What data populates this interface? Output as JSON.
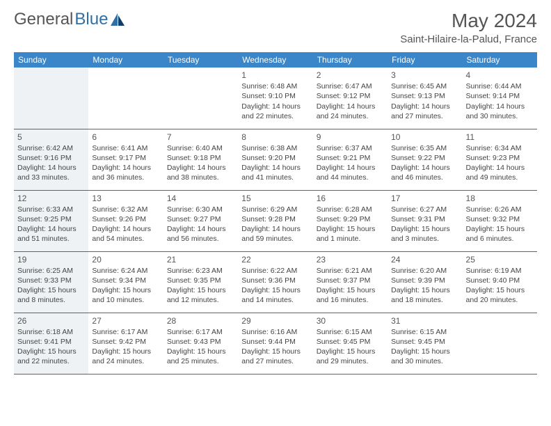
{
  "logo": {
    "part1": "General",
    "part2": "Blue"
  },
  "title": "May 2024",
  "location": "Saint-Hilaire-la-Palud, France",
  "colors": {
    "header_bg": "#3a86c8",
    "header_text": "#ffffff",
    "row_border": "#3a6a9a",
    "weekstart_bg": "#eef2f5",
    "title_color": "#555555",
    "logo_blue": "#2f6fa8"
  },
  "dayNames": [
    "Sunday",
    "Monday",
    "Tuesday",
    "Wednesday",
    "Thursday",
    "Friday",
    "Saturday"
  ],
  "labels": {
    "sunrise": "Sunrise:",
    "sunset": "Sunset:",
    "daylight": "Daylight:"
  },
  "grid": [
    [
      null,
      null,
      null,
      {
        "n": "1",
        "sunrise": "6:48 AM",
        "sunset": "9:10 PM",
        "daylight": "14 hours and 22 minutes."
      },
      {
        "n": "2",
        "sunrise": "6:47 AM",
        "sunset": "9:12 PM",
        "daylight": "14 hours and 24 minutes."
      },
      {
        "n": "3",
        "sunrise": "6:45 AM",
        "sunset": "9:13 PM",
        "daylight": "14 hours and 27 minutes."
      },
      {
        "n": "4",
        "sunrise": "6:44 AM",
        "sunset": "9:14 PM",
        "daylight": "14 hours and 30 minutes."
      }
    ],
    [
      {
        "n": "5",
        "sunrise": "6:42 AM",
        "sunset": "9:16 PM",
        "daylight": "14 hours and 33 minutes."
      },
      {
        "n": "6",
        "sunrise": "6:41 AM",
        "sunset": "9:17 PM",
        "daylight": "14 hours and 36 minutes."
      },
      {
        "n": "7",
        "sunrise": "6:40 AM",
        "sunset": "9:18 PM",
        "daylight": "14 hours and 38 minutes."
      },
      {
        "n": "8",
        "sunrise": "6:38 AM",
        "sunset": "9:20 PM",
        "daylight": "14 hours and 41 minutes."
      },
      {
        "n": "9",
        "sunrise": "6:37 AM",
        "sunset": "9:21 PM",
        "daylight": "14 hours and 44 minutes."
      },
      {
        "n": "10",
        "sunrise": "6:35 AM",
        "sunset": "9:22 PM",
        "daylight": "14 hours and 46 minutes."
      },
      {
        "n": "11",
        "sunrise": "6:34 AM",
        "sunset": "9:23 PM",
        "daylight": "14 hours and 49 minutes."
      }
    ],
    [
      {
        "n": "12",
        "sunrise": "6:33 AM",
        "sunset": "9:25 PM",
        "daylight": "14 hours and 51 minutes."
      },
      {
        "n": "13",
        "sunrise": "6:32 AM",
        "sunset": "9:26 PM",
        "daylight": "14 hours and 54 minutes."
      },
      {
        "n": "14",
        "sunrise": "6:30 AM",
        "sunset": "9:27 PM",
        "daylight": "14 hours and 56 minutes."
      },
      {
        "n": "15",
        "sunrise": "6:29 AM",
        "sunset": "9:28 PM",
        "daylight": "14 hours and 59 minutes."
      },
      {
        "n": "16",
        "sunrise": "6:28 AM",
        "sunset": "9:29 PM",
        "daylight": "15 hours and 1 minute."
      },
      {
        "n": "17",
        "sunrise": "6:27 AM",
        "sunset": "9:31 PM",
        "daylight": "15 hours and 3 minutes."
      },
      {
        "n": "18",
        "sunrise": "6:26 AM",
        "sunset": "9:32 PM",
        "daylight": "15 hours and 6 minutes."
      }
    ],
    [
      {
        "n": "19",
        "sunrise": "6:25 AM",
        "sunset": "9:33 PM",
        "daylight": "15 hours and 8 minutes."
      },
      {
        "n": "20",
        "sunrise": "6:24 AM",
        "sunset": "9:34 PM",
        "daylight": "15 hours and 10 minutes."
      },
      {
        "n": "21",
        "sunrise": "6:23 AM",
        "sunset": "9:35 PM",
        "daylight": "15 hours and 12 minutes."
      },
      {
        "n": "22",
        "sunrise": "6:22 AM",
        "sunset": "9:36 PM",
        "daylight": "15 hours and 14 minutes."
      },
      {
        "n": "23",
        "sunrise": "6:21 AM",
        "sunset": "9:37 PM",
        "daylight": "15 hours and 16 minutes."
      },
      {
        "n": "24",
        "sunrise": "6:20 AM",
        "sunset": "9:39 PM",
        "daylight": "15 hours and 18 minutes."
      },
      {
        "n": "25",
        "sunrise": "6:19 AM",
        "sunset": "9:40 PM",
        "daylight": "15 hours and 20 minutes."
      }
    ],
    [
      {
        "n": "26",
        "sunrise": "6:18 AM",
        "sunset": "9:41 PM",
        "daylight": "15 hours and 22 minutes."
      },
      {
        "n": "27",
        "sunrise": "6:17 AM",
        "sunset": "9:42 PM",
        "daylight": "15 hours and 24 minutes."
      },
      {
        "n": "28",
        "sunrise": "6:17 AM",
        "sunset": "9:43 PM",
        "daylight": "15 hours and 25 minutes."
      },
      {
        "n": "29",
        "sunrise": "6:16 AM",
        "sunset": "9:44 PM",
        "daylight": "15 hours and 27 minutes."
      },
      {
        "n": "30",
        "sunrise": "6:15 AM",
        "sunset": "9:45 PM",
        "daylight": "15 hours and 29 minutes."
      },
      {
        "n": "31",
        "sunrise": "6:15 AM",
        "sunset": "9:45 PM",
        "daylight": "15 hours and 30 minutes."
      },
      null
    ]
  ]
}
